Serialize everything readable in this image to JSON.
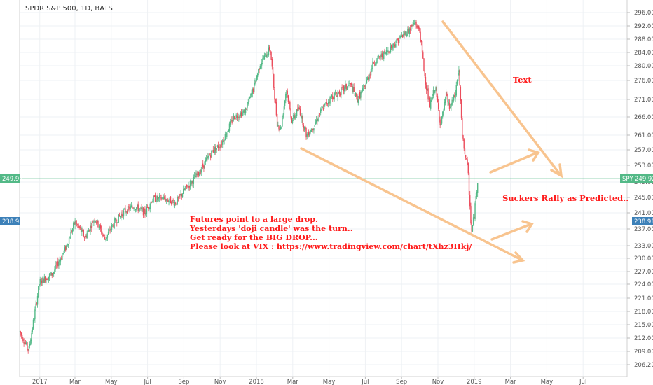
{
  "chart_data": {
    "type": "candlestick",
    "title": "SPDR S&P 500, 1D, BATS",
    "y_range": [
      204,
      297.5
    ],
    "y_ticks": [
      "206.20",
      "209.00",
      "212.00",
      "215.00",
      "218.00",
      "221.00",
      "224.00",
      "227.00",
      "230.00",
      "233.00",
      "237.00",
      "241.00",
      "245.00",
      "249.00",
      "253.00",
      "257.00",
      "261.00",
      "266.00",
      "271.00",
      "276.00",
      "280.00",
      "284.00",
      "288.00",
      "292.00",
      "296.00"
    ],
    "x_ticks": [
      {
        "label": "2017",
        "t": 0.91
      },
      {
        "label": "Mar",
        "t": 2.85
      },
      {
        "label": "May",
        "t": 4.85
      },
      {
        "label": "Jul",
        "t": 6.85
      },
      {
        "label": "Sep",
        "t": 8.85
      },
      {
        "label": "Nov",
        "t": 10.85
      },
      {
        "label": "2018",
        "t": 12.85
      },
      {
        "label": "Mar",
        "t": 14.85
      },
      {
        "label": "May",
        "t": 16.85
      },
      {
        "label": "Jul",
        "t": 18.85
      },
      {
        "label": "Sep",
        "t": 20.85
      },
      {
        "label": "Nov",
        "t": 22.85
      },
      {
        "label": "2019",
        "t": 24.85
      },
      {
        "label": "Mar",
        "t": 26.85
      },
      {
        "label": "May",
        "t": 28.85
      },
      {
        "label": "Jul",
        "t": 30.85
      }
    ],
    "price_path": [
      [
        -0.2,
        213.5
      ],
      [
        0.3,
        209.2
      ],
      [
        0.9,
        224.5
      ],
      [
        1.6,
        226.4
      ],
      [
        2.3,
        232.0
      ],
      [
        2.85,
        238.8
      ],
      [
        3.4,
        235.0
      ],
      [
        3.95,
        239.8
      ],
      [
        4.5,
        234.5
      ],
      [
        5.0,
        238.5
      ],
      [
        5.6,
        241.5
      ],
      [
        6.1,
        242.8
      ],
      [
        6.7,
        241.0
      ],
      [
        7.1,
        244.5
      ],
      [
        7.7,
        244.8
      ],
      [
        8.4,
        243.6
      ],
      [
        8.9,
        247.0
      ],
      [
        9.7,
        251.3
      ],
      [
        10.4,
        256.5
      ],
      [
        10.9,
        258.6
      ],
      [
        11.6,
        266.0
      ],
      [
        12.2,
        267.5
      ],
      [
        12.7,
        274.0
      ],
      [
        13.05,
        280.5
      ],
      [
        13.6,
        285.3
      ],
      [
        14.0,
        264.0
      ],
      [
        14.2,
        262.8
      ],
      [
        14.5,
        274.0
      ],
      [
        14.8,
        265.0
      ],
      [
        15.2,
        268.5
      ],
      [
        15.6,
        261.0
      ],
      [
        16.0,
        263.5
      ],
      [
        16.5,
        268.5
      ],
      [
        17.0,
        271.8
      ],
      [
        17.5,
        273.0
      ],
      [
        18.0,
        275.0
      ],
      [
        18.4,
        271.0
      ],
      [
        18.8,
        274.0
      ],
      [
        19.3,
        281.0
      ],
      [
        20.0,
        284.0
      ],
      [
        20.7,
        288.0
      ],
      [
        21.2,
        290.5
      ],
      [
        21.6,
        293.0
      ],
      [
        21.85,
        290.5
      ],
      [
        22.1,
        278.0
      ],
      [
        22.4,
        269.0
      ],
      [
        22.7,
        274.5
      ],
      [
        23.0,
        263.5
      ],
      [
        23.3,
        272.0
      ],
      [
        23.5,
        268.5
      ],
      [
        23.8,
        272.0
      ],
      [
        24.0,
        279.5
      ],
      [
        24.2,
        260.0
      ],
      [
        24.5,
        252.0
      ],
      [
        24.7,
        236.0
      ],
      [
        24.85,
        240.5
      ],
      [
        25.05,
        249.92
      ]
    ],
    "markers": [
      {
        "label": "SPY",
        "value": "249.92",
        "price": 249.92
      },
      {
        "label": "",
        "value": "238.91",
        "price": 238.91
      }
    ]
  },
  "annotations": {
    "text_label": "Text",
    "rally_label": "Suckers Rally as Predicted..",
    "note_lines": [
      "Futures point to a large drop.",
      "Yesterdays 'doji candle' was the turn..",
      "Get ready for the BIG DROP...",
      "Please look at VIX : https://www.tradingview.com/chart/tXhz3Hkj/"
    ]
  },
  "colors": {
    "up": "#53b987",
    "down": "#eb4d5c",
    "arrow": "#f8c48f",
    "spy_tag": "#53b987",
    "price_tag": "#3c80b8",
    "annotation": "#ff1a1a"
  }
}
